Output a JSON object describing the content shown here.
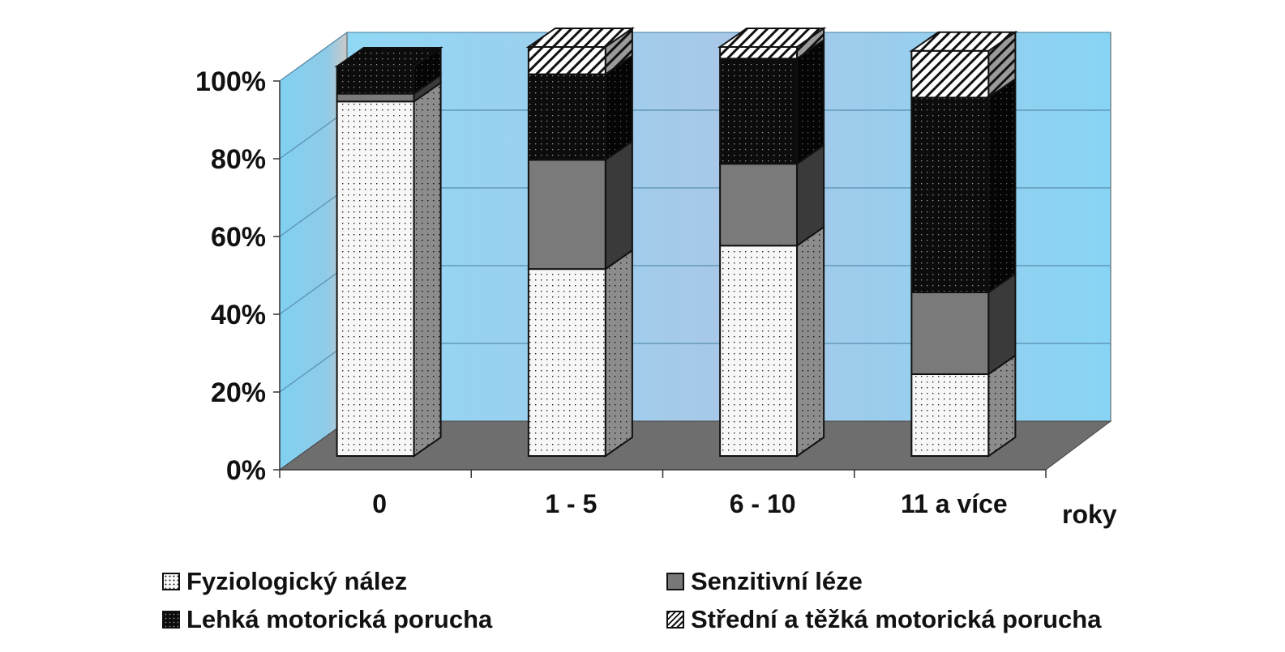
{
  "chart_data": {
    "type": "bar",
    "stacked": true,
    "three_d": true,
    "categories": [
      "0",
      "1 - 5",
      "6 - 10",
      "11 a více"
    ],
    "xlabel": "roky",
    "ylabel": "",
    "ylim": [
      0,
      100
    ],
    "y_ticks": [
      "0%",
      "20%",
      "40%",
      "60%",
      "80%",
      "100%"
    ],
    "grid": true,
    "legend_position": "bottom",
    "series": [
      {
        "name": "Fyziologický nález",
        "values": [
          91,
          48,
          54,
          21
        ],
        "pattern": "dots-light",
        "color": "#f4f4f4"
      },
      {
        "name": "Senzitivní léze",
        "values": [
          2,
          28,
          21,
          21
        ],
        "pattern": "solid-gray",
        "color": "#787878"
      },
      {
        "name": "Lehká motorická porucha",
        "values": [
          7,
          22,
          27,
          50
        ],
        "pattern": "dots-dark",
        "color": "#0e0e0e"
      },
      {
        "name": "Střední a těžká motorická porucha",
        "values": [
          0,
          7,
          3,
          12
        ],
        "pattern": "hatch",
        "color": "#ffffff"
      }
    ],
    "colors": {
      "back_wall": "#7fd0f0",
      "floor": "#6e6e6e",
      "grid": "#5a8fae"
    }
  }
}
